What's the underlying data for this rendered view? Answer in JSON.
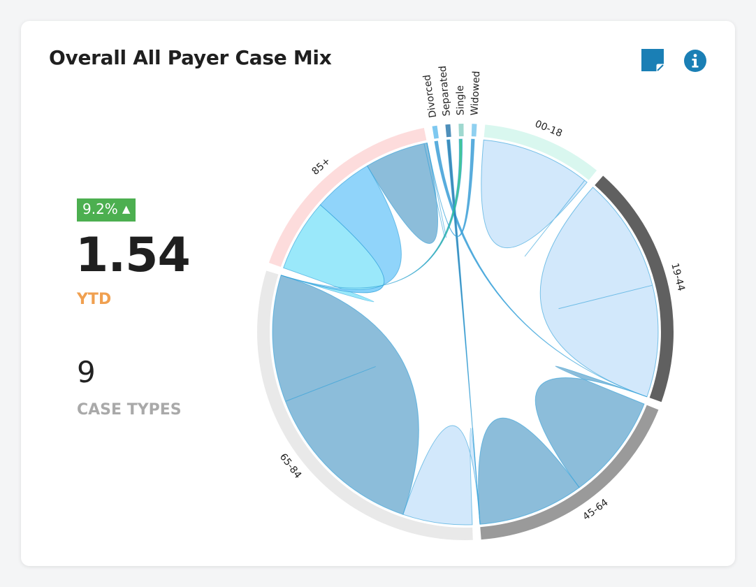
{
  "header": {
    "title": "Overall All Payer Case Mix",
    "note_icon": "sticky-note-icon",
    "info_icon": "info-icon"
  },
  "kpi": {
    "change": "9.2%",
    "change_direction": "up",
    "change_color": "#4caf50",
    "value": "1.54",
    "period": "YTD",
    "period_color": "#f0a050",
    "case_count": "9",
    "case_label": "CASE TYPES"
  },
  "chart_data": {
    "type": "chord",
    "groups": [
      {
        "name": "Divorced",
        "value": 1.5,
        "color": "#7ec8f0"
      },
      {
        "name": "Separated",
        "value": 1.5,
        "color": "#4f8fba"
      },
      {
        "name": "Single",
        "value": 1.5,
        "color": "#9fd8cf"
      },
      {
        "name": "Widowed",
        "value": 1.5,
        "color": "#8fd0f0"
      },
      {
        "name": "00-18",
        "value": 37,
        "color": "#d9f7ef"
      },
      {
        "name": "19-44",
        "value": 75,
        "color": "#606060"
      },
      {
        "name": "45-64",
        "value": 70,
        "color": "#9a9a9a"
      },
      {
        "name": "65-84",
        "value": 120,
        "color": "#e9e9e9"
      },
      {
        "name": "85+",
        "value": 65,
        "color": "#fddcdc"
      }
    ],
    "ribbons": [
      {
        "source": "00-18",
        "target": "00-18",
        "value": 36,
        "color": "#cde5fb"
      },
      {
        "source": "19-44",
        "target": "19-44",
        "value": 38,
        "color": "#cde5fb"
      },
      {
        "source": "19-44",
        "target": "45-64",
        "value": 35,
        "color": "#7fb6d6"
      },
      {
        "source": "45-64",
        "target": "45-64",
        "value": 45,
        "color": "#7fb6d6"
      },
      {
        "source": "45-64",
        "target": "65-84",
        "value": 23,
        "color": "#cde5fb"
      },
      {
        "source": "65-84",
        "target": "65-84",
        "value": 55,
        "color": "#7fb6d6"
      },
      {
        "source": "65-84",
        "target": "85+",
        "value": 24,
        "color": "#8fe6fa"
      },
      {
        "source": "65-84",
        "target": "85+",
        "value": 20,
        "color": "#84cff9"
      },
      {
        "source": "85+",
        "target": "85+",
        "value": 20,
        "color": "#7fb6d6"
      },
      {
        "source": "85+",
        "target": "85+",
        "value": 20,
        "color": "#84cff9"
      },
      {
        "source": "Divorced",
        "target": "19-44",
        "value": 1,
        "color": "#4aa3d8"
      },
      {
        "source": "Separated",
        "target": "45-64",
        "value": 1,
        "color": "#2b7fb3"
      },
      {
        "source": "Single",
        "target": "65-84",
        "value": 1,
        "color": "#2fbf8f"
      },
      {
        "source": "Widowed",
        "target": "85+",
        "value": 1,
        "color": "#4aa3d8"
      }
    ]
  }
}
